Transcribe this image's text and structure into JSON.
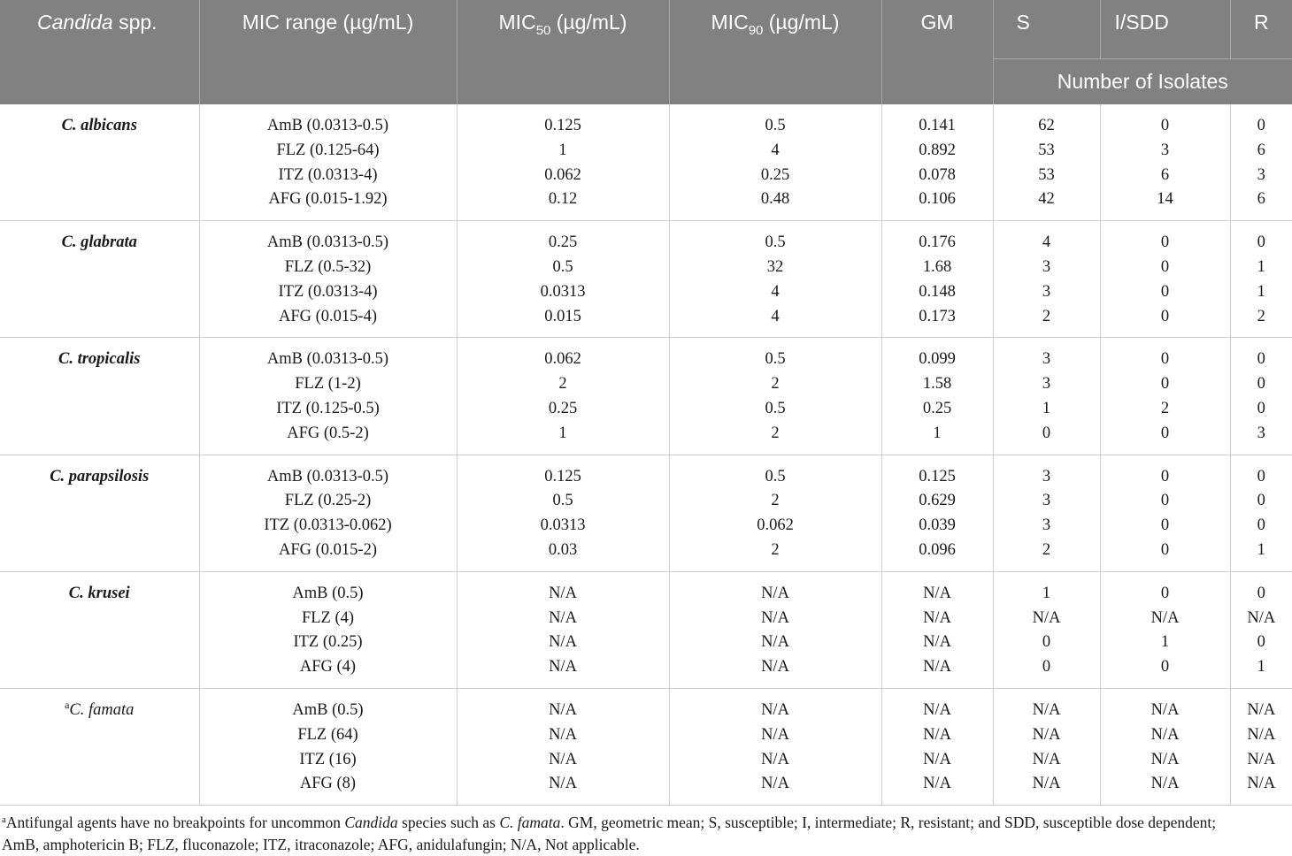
{
  "header": {
    "species": "Candida",
    "species_suffix": " spp.",
    "mic_range": "MIC range (µg/mL)",
    "mic50_main": "MIC",
    "mic50_sub": "50",
    "mic50_unit": " (µg/mL)",
    "mic90_main": "MIC",
    "mic90_sub": "90",
    "mic90_unit": " (µg/mL)",
    "gm": "GM",
    "s": "S",
    "isdd": "I/SDD",
    "r": "R",
    "number_of_isolates": "Number of Isolates"
  },
  "rows": [
    {
      "species": "C. albicans",
      "ranges": [
        "AmB (0.0313-0.5)",
        "FLZ (0.125-64)",
        "ITZ (0.0313-4)",
        "AFG (0.015-1.92)"
      ],
      "mic50": [
        "0.125",
        "1",
        "0.062",
        "0.12"
      ],
      "mic90": [
        "0.5",
        "4",
        "0.25",
        "0.48"
      ],
      "gm": [
        "0.141",
        "0.892",
        "0.078",
        "0.106"
      ],
      "s": [
        "62",
        "53",
        "53",
        "42"
      ],
      "isdd": [
        "0",
        "3",
        "6",
        "14"
      ],
      "r": [
        "0",
        "6",
        "3",
        "6"
      ]
    },
    {
      "species": "C. glabrata",
      "ranges": [
        "AmB (0.0313-0.5)",
        "FLZ (0.5-32)",
        "ITZ (0.0313-4)",
        "AFG (0.015-4)"
      ],
      "mic50": [
        "0.25",
        "0.5",
        "0.0313",
        "0.015"
      ],
      "mic90": [
        "0.5",
        "32",
        "4",
        "4"
      ],
      "gm": [
        "0.176",
        "1.68",
        "0.148",
        "0.173"
      ],
      "s": [
        "4",
        "3",
        "3",
        "2"
      ],
      "isdd": [
        "0",
        "0",
        "0",
        "0"
      ],
      "r": [
        "0",
        "1",
        "1",
        "2"
      ]
    },
    {
      "species": "C. tropicalis",
      "ranges": [
        "AmB (0.0313-0.5)",
        "FLZ (1-2)",
        "ITZ (0.125-0.5)",
        "AFG (0.5-2)"
      ],
      "mic50": [
        "0.062",
        "2",
        "0.25",
        "1"
      ],
      "mic90": [
        "0.5",
        "2",
        "0.5",
        "2"
      ],
      "gm": [
        "0.099",
        "1.58",
        "0.25",
        "1"
      ],
      "s": [
        "3",
        "3",
        "1",
        "0"
      ],
      "isdd": [
        "0",
        "0",
        "2",
        "0"
      ],
      "r": [
        "0",
        "0",
        "0",
        "3"
      ]
    },
    {
      "species": "C. parapsilosis",
      "ranges": [
        "AmB (0.0313-0.5)",
        "FLZ (0.25-2)",
        "ITZ (0.0313-0.062)",
        "AFG (0.015-2)"
      ],
      "mic50": [
        "0.125",
        "0.5",
        "0.0313",
        "0.03"
      ],
      "mic90": [
        "0.5",
        "2",
        "0.062",
        "2"
      ],
      "gm": [
        "0.125",
        "0.629",
        "0.039",
        "0.096"
      ],
      "s": [
        "3",
        "3",
        "3",
        "2"
      ],
      "isdd": [
        "0",
        "0",
        "0",
        "0"
      ],
      "r": [
        "0",
        "0",
        "0",
        "1"
      ]
    },
    {
      "species": "C. krusei",
      "ranges": [
        "AmB (0.5)",
        "FLZ (4)",
        "ITZ (0.25)",
        "AFG (4)"
      ],
      "mic50": [
        "N/A",
        "N/A",
        "N/A",
        "N/A"
      ],
      "mic90": [
        "N/A",
        "N/A",
        "N/A",
        "N/A"
      ],
      "gm": [
        "N/A",
        "N/A",
        "N/A",
        "N/A"
      ],
      "s": [
        "1",
        "N/A",
        "0",
        "0"
      ],
      "isdd": [
        "0",
        "N/A",
        "1",
        "0"
      ],
      "r": [
        "0",
        "N/A",
        "0",
        "1"
      ]
    },
    {
      "species": "C. famata",
      "species_mark": "a",
      "ranges": [
        "AmB (0.5)",
        "FLZ (64)",
        "ITZ (16)",
        "AFG (8)"
      ],
      "mic50": [
        "N/A",
        "N/A",
        "N/A",
        "N/A"
      ],
      "mic90": [
        "N/A",
        "N/A",
        "N/A",
        "N/A"
      ],
      "gm": [
        "N/A",
        "N/A",
        "N/A",
        "N/A"
      ],
      "s": [
        "N/A",
        "N/A",
        "N/A",
        "N/A"
      ],
      "isdd": [
        "N/A",
        "N/A",
        "N/A",
        "N/A"
      ],
      "r": [
        "N/A",
        "N/A",
        "N/A",
        "N/A"
      ]
    }
  ],
  "footnote": {
    "mark": "a",
    "p1": "Antifungal agents have no breakpoints for uncommon ",
    "i1": "Candida",
    "p2": " species such as ",
    "i2": "C. famata",
    "p3": ". GM, geometric mean; S, susceptible; I, intermediate; R, resistant; and SDD, susceptible dose dependent;",
    "line2": "AmB, amphotericin B; FLZ, fluconazole; ITZ, itraconazole; AFG, anidulafungin; N/A, Not applicable."
  }
}
